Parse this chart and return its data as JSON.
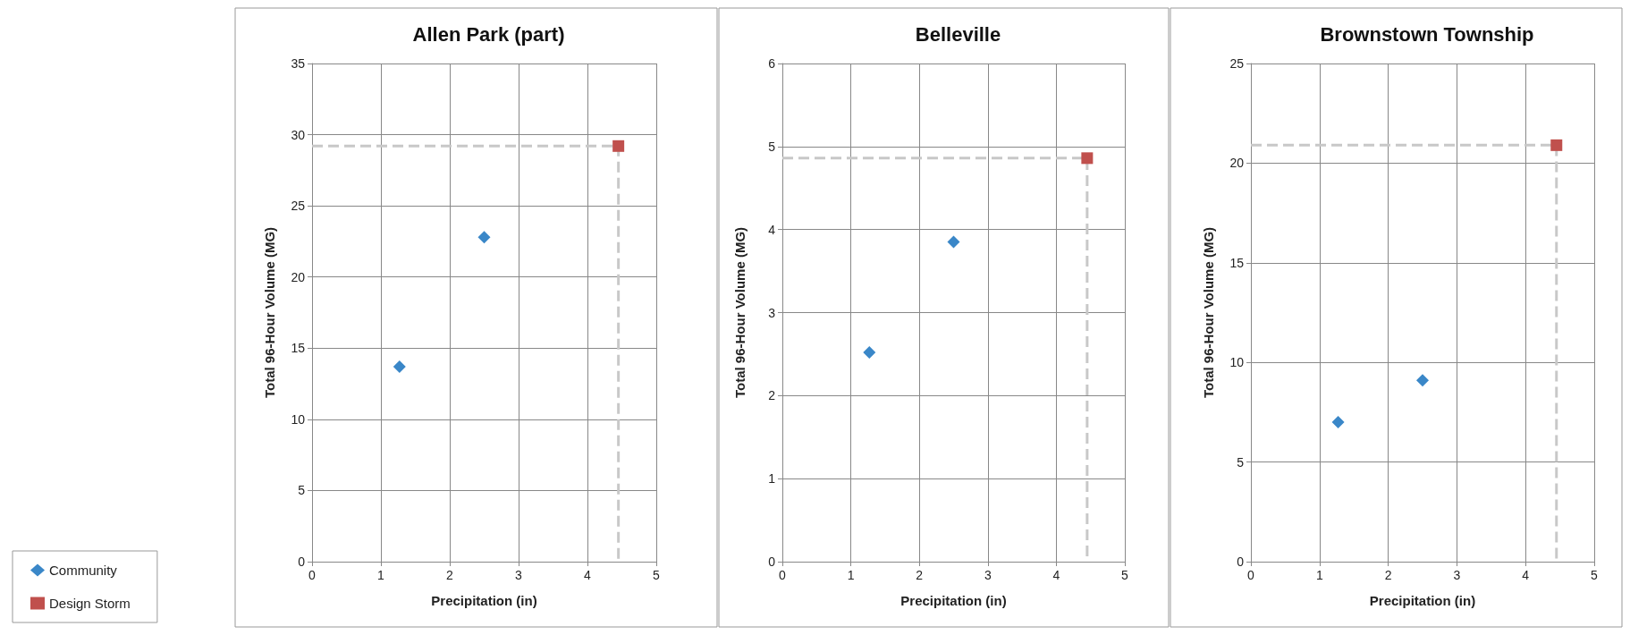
{
  "chart_data": [
    {
      "type": "scatter",
      "title": "Allen Park (part)",
      "xlabel": "Precipitation (in)",
      "ylabel": "Total 96-Hour Volume (MG)",
      "xlim": [
        0,
        5
      ],
      "xticks": [
        0,
        1,
        2,
        3,
        4,
        5
      ],
      "ylim": [
        0,
        35
      ],
      "yticks": [
        0,
        5,
        10,
        15,
        20,
        25,
        30,
        35
      ],
      "grid": true,
      "legend": "bottom left",
      "series": [
        {
          "name": "Community",
          "type": "scatter",
          "color": "#3a87c8",
          "marker": "diamond",
          "x": [
            1.27,
            2.5
          ],
          "values": [
            13.7,
            22.8
          ]
        },
        {
          "type": "line",
          "color": "#c8c8c8",
          "marker": "none",
          "line_style": "dashed",
          "x": [
            0,
            4.45,
            4.45
          ],
          "values": [
            29.2,
            29.2,
            0
          ]
        },
        {
          "name": "Design Storm",
          "type": "scatter",
          "color": "#c0504d",
          "marker": "square",
          "x": [
            4.45
          ],
          "values": [
            29.2
          ]
        }
      ]
    },
    {
      "type": "scatter",
      "title": "Belleville",
      "xlabel": "Precipitation (in)",
      "ylabel": "Total 96-Hour Volume (MG)",
      "xlim": [
        0,
        5
      ],
      "xticks": [
        0,
        1,
        2,
        3,
        4,
        5
      ],
      "ylim": [
        0,
        6
      ],
      "yticks": [
        0,
        1,
        2,
        3,
        4,
        5,
        6
      ],
      "grid": true,
      "series": [
        {
          "type": "scatter",
          "color": "#3a87c8",
          "marker": "diamond",
          "x": [
            1.27,
            2.5
          ],
          "values": [
            2.52,
            3.85
          ]
        },
        {
          "type": "line",
          "color": "#c8c8c8",
          "marker": "none",
          "line_style": "dashed",
          "x": [
            0,
            4.45,
            4.45
          ],
          "values": [
            4.86,
            4.86,
            0
          ]
        },
        {
          "type": "scatter",
          "color": "#c0504d",
          "marker": "square",
          "x": [
            4.45
          ],
          "values": [
            4.86
          ]
        }
      ]
    },
    {
      "type": "scatter",
      "title": "Brownstown Township",
      "xlabel": "Precipitation (in)",
      "ylabel": "Total 96-Hour Volume (MG)",
      "xlim": [
        0,
        5
      ],
      "xticks": [
        0,
        1,
        2,
        3,
        4,
        5
      ],
      "ylim": [
        0,
        25
      ],
      "yticks": [
        0,
        5,
        10,
        15,
        20,
        25
      ],
      "grid": true,
      "series": [
        {
          "type": "scatter",
          "color": "#3a87c8",
          "marker": "diamond",
          "x": [
            1.27,
            2.5
          ],
          "values": [
            7.0,
            9.1
          ]
        },
        {
          "type": "line",
          "color": "#c8c8c8",
          "marker": "none",
          "line_style": "dashed",
          "x": [
            0,
            4.45,
            4.45
          ],
          "values": [
            20.9,
            20.9,
            0
          ]
        },
        {
          "type": "scatter",
          "color": "#c0504d",
          "marker": "square",
          "x": [
            4.45
          ],
          "values": [
            20.9
          ]
        }
      ]
    }
  ]
}
